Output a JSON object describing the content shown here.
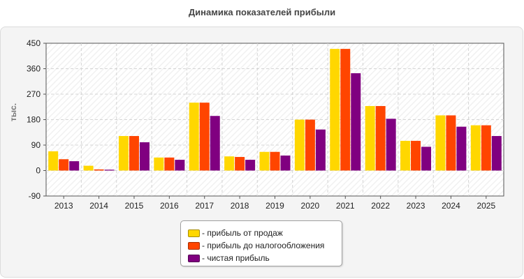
{
  "chart_data": {
    "type": "bar",
    "title": "Динамика показателей прибыли",
    "ylabel": "тыс.",
    "xlabel": "",
    "ylim": [
      -90,
      450
    ],
    "yticks": [
      -90,
      0,
      90,
      180,
      270,
      360,
      450
    ],
    "grid": true,
    "legend_position": "bottom-center",
    "categories": [
      "2013",
      "2014",
      "2015",
      "2016",
      "2017",
      "2018",
      "2019",
      "2020",
      "2021",
      "2022",
      "2023",
      "2024",
      "2025"
    ],
    "series": [
      {
        "name": "прибыль от продаж",
        "color": "#ffd700",
        "values": [
          68,
          17,
          122,
          46,
          240,
          50,
          66,
          180,
          430,
          228,
          105,
          195,
          160
        ]
      },
      {
        "name": "прибыль до налогообложения",
        "color": "#ff4500",
        "values": [
          40,
          4,
          122,
          46,
          240,
          48,
          66,
          180,
          430,
          228,
          105,
          195,
          160
        ]
      },
      {
        "name": "чистая прибыль",
        "color": "#800080",
        "values": [
          33,
          3,
          100,
          38,
          193,
          38,
          53,
          145,
          344,
          183,
          84,
          155,
          122
        ]
      }
    ]
  }
}
